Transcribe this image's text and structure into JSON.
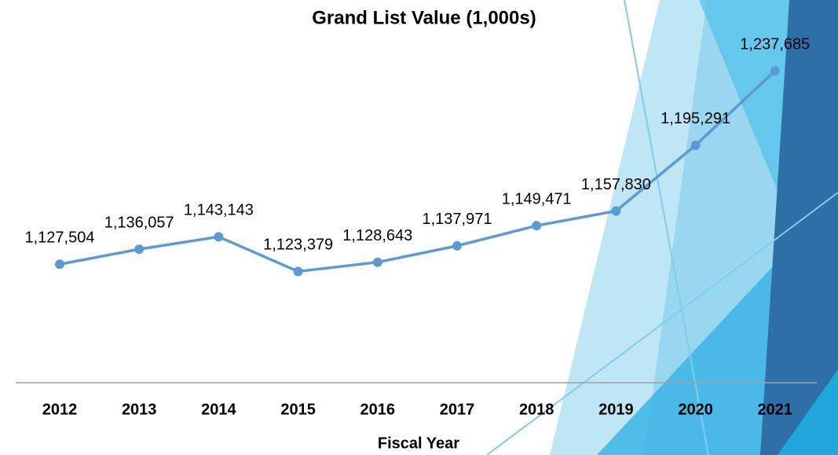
{
  "chart_data": {
    "type": "line",
    "title": "Grand List Value (1,000s)",
    "x_label": "Fiscal Year",
    "categories": [
      "2012",
      "2013",
      "2014",
      "2015",
      "2016",
      "2017",
      "2018",
      "2019",
      "2020",
      "2021"
    ],
    "values": [
      1127504,
      1136057,
      1143143,
      1123379,
      1128643,
      1137971,
      1149471,
      1157830,
      1195291,
      1237685
    ],
    "value_labels": [
      "1,127,504",
      "1,136,057",
      "1,143,143",
      "1,123,379",
      "1,128,643",
      "1,137,971",
      "1,149,471",
      "1,157,830",
      "1,195,291",
      "1,237,685"
    ],
    "color": "#5b9bd5",
    "ylim": [
      1060000,
      1240000
    ],
    "grid": false
  }
}
